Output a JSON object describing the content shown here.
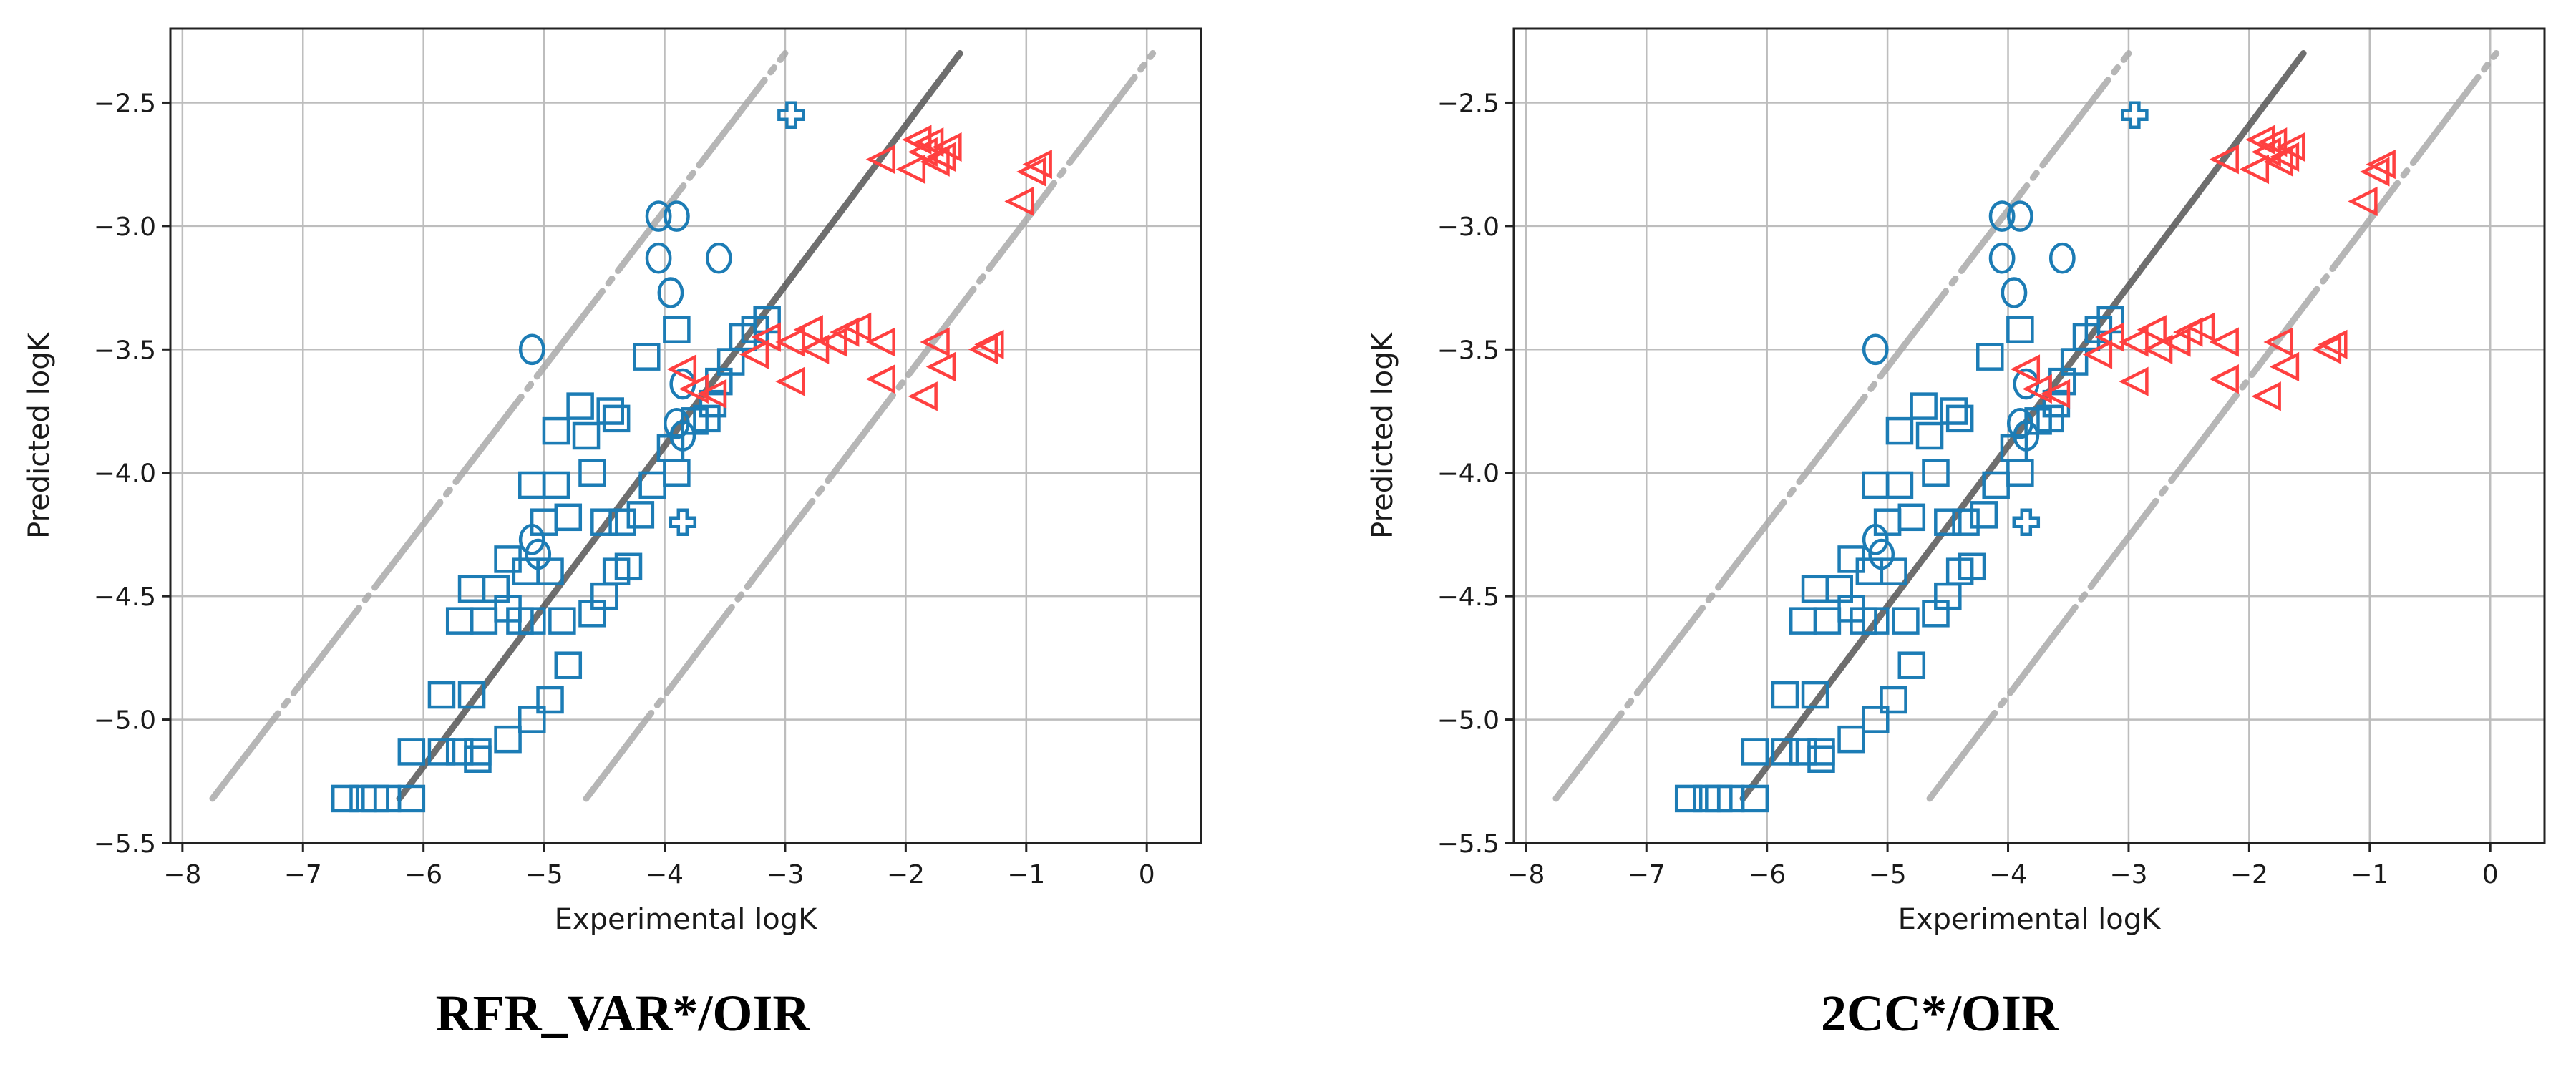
{
  "chart_data": [
    {
      "type": "scatter",
      "caption": "RFR_VAR*/OIR",
      "xlabel": "Experimental logK",
      "ylabel": "Predicted logK",
      "xlim": [
        -8.1,
        0.45
      ],
      "ylim": [
        -5.5,
        -2.2
      ],
      "xticks": [
        -8,
        -7,
        -6,
        -5,
        -4,
        -3,
        -2,
        -1,
        0
      ],
      "yticks": [
        -5.5,
        -5.0,
        -4.5,
        -4.0,
        -3.5,
        -3.0,
        -2.5
      ],
      "xtick_labels": [
        "−8",
        "−7",
        "−6",
        "−5",
        "−4",
        "−3",
        "−2",
        "−1",
        "0"
      ],
      "ytick_labels": [
        "−5.5",
        "−5.0",
        "−4.5",
        "−4.0",
        "−3.5",
        "−3.0",
        "−2.5"
      ],
      "grid": true,
      "reference_lines": [
        {
          "style": "dashed-light",
          "color": "#aaaaaa",
          "points": [
            [
              -7.75,
              -5.32
            ],
            [
              -3.0,
              -2.3
            ]
          ]
        },
        {
          "style": "dashed-light",
          "color": "#aaaaaa",
          "points": [
            [
              -4.65,
              -5.32
            ],
            [
              0.05,
              -2.3
            ]
          ]
        },
        {
          "style": "solid-dark",
          "color": "#555555",
          "points": [
            [
              -6.2,
              -5.32
            ],
            [
              -1.55,
              -2.3
            ]
          ]
        }
      ],
      "series": [
        {
          "marker": "square",
          "color": "#1c7cb5",
          "points": [
            [
              -6.65,
              -5.32
            ],
            [
              -6.5,
              -5.32
            ],
            [
              -6.4,
              -5.32
            ],
            [
              -6.3,
              -5.32
            ],
            [
              -6.1,
              -5.32
            ],
            [
              -6.1,
              -5.13
            ],
            [
              -5.85,
              -5.13
            ],
            [
              -5.7,
              -5.13
            ],
            [
              -5.55,
              -5.13
            ],
            [
              -5.55,
              -5.16
            ],
            [
              -5.3,
              -5.08
            ],
            [
              -5.1,
              -5.0
            ],
            [
              -4.95,
              -4.92
            ],
            [
              -4.8,
              -4.78
            ],
            [
              -5.85,
              -4.9
            ],
            [
              -5.6,
              -4.9
            ],
            [
              -5.7,
              -4.6
            ],
            [
              -5.5,
              -4.6
            ],
            [
              -5.3,
              -4.55
            ],
            [
              -5.2,
              -4.6
            ],
            [
              -5.1,
              -4.6
            ],
            [
              -4.85,
              -4.6
            ],
            [
              -4.6,
              -4.57
            ],
            [
              -5.6,
              -4.47
            ],
            [
              -5.4,
              -4.47
            ],
            [
              -5.3,
              -4.35
            ],
            [
              -5.15,
              -4.4
            ],
            [
              -4.95,
              -4.4
            ],
            [
              -4.5,
              -4.5
            ],
            [
              -4.4,
              -4.4
            ],
            [
              -4.3,
              -4.38
            ],
            [
              -5.0,
              -4.2
            ],
            [
              -4.8,
              -4.18
            ],
            [
              -4.5,
              -4.2
            ],
            [
              -4.35,
              -4.2
            ],
            [
              -4.2,
              -4.17
            ],
            [
              -5.1,
              -4.05
            ],
            [
              -4.9,
              -4.05
            ],
            [
              -4.6,
              -4.0
            ],
            [
              -4.1,
              -4.05
            ],
            [
              -3.9,
              -4.0
            ],
            [
              -3.95,
              -3.9
            ],
            [
              -4.9,
              -3.83
            ],
            [
              -4.65,
              -3.85
            ],
            [
              -4.7,
              -3.73
            ],
            [
              -4.45,
              -3.75
            ],
            [
              -4.4,
              -3.78
            ],
            [
              -3.75,
              -3.79
            ],
            [
              -3.65,
              -3.78
            ],
            [
              -3.6,
              -3.72
            ],
            [
              -3.55,
              -3.63
            ],
            [
              -3.45,
              -3.55
            ],
            [
              -3.35,
              -3.45
            ],
            [
              -3.25,
              -3.42
            ],
            [
              -3.15,
              -3.38
            ],
            [
              -4.15,
              -3.53
            ],
            [
              -3.9,
              -3.42
            ]
          ]
        },
        {
          "marker": "circle",
          "color": "#1c7cb5",
          "points": [
            [
              -4.05,
              -2.96
            ],
            [
              -3.9,
              -2.96
            ],
            [
              -4.05,
              -3.13
            ],
            [
              -3.55,
              -3.13
            ],
            [
              -3.95,
              -3.27
            ],
            [
              -5.1,
              -3.5
            ],
            [
              -3.85,
              -3.64
            ],
            [
              -3.9,
              -3.8
            ],
            [
              -3.85,
              -3.85
            ],
            [
              -5.1,
              -4.27
            ],
            [
              -5.05,
              -4.33
            ]
          ]
        },
        {
          "marker": "plus",
          "color": "#1c7cb5",
          "points": [
            [
              -2.95,
              -2.55
            ],
            [
              -3.85,
              -4.2
            ]
          ]
        },
        {
          "marker": "triangle-left",
          "color": "#ff4040",
          "points": [
            [
              -2.2,
              -2.73
            ],
            [
              -1.9,
              -2.65
            ],
            [
              -1.8,
              -2.66
            ],
            [
              -1.85,
              -2.7
            ],
            [
              -1.7,
              -2.72
            ],
            [
              -1.65,
              -2.68
            ],
            [
              -1.95,
              -2.77
            ],
            [
              -1.75,
              -2.74
            ],
            [
              -0.95,
              -2.78
            ],
            [
              -0.9,
              -2.75
            ],
            [
              -1.05,
              -2.9
            ],
            [
              -3.85,
              -3.58
            ],
            [
              -3.75,
              -3.66
            ],
            [
              -3.6,
              -3.68
            ],
            [
              -3.25,
              -3.52
            ],
            [
              -3.15,
              -3.45
            ],
            [
              -2.95,
              -3.63
            ],
            [
              -2.95,
              -3.47
            ],
            [
              -2.8,
              -3.42
            ],
            [
              -2.75,
              -3.5
            ],
            [
              -2.6,
              -3.47
            ],
            [
              -2.5,
              -3.43
            ],
            [
              -2.4,
              -3.41
            ],
            [
              -2.2,
              -3.47
            ],
            [
              -2.2,
              -3.62
            ],
            [
              -1.85,
              -3.69
            ],
            [
              -1.75,
              -3.47
            ],
            [
              -1.7,
              -3.57
            ],
            [
              -1.35,
              -3.5
            ],
            [
              -1.3,
              -3.48
            ]
          ]
        }
      ]
    },
    {
      "type": "scatter",
      "caption": "2CC*/OIR",
      "xlabel": "Experimental logK",
      "ylabel": "Predicted logK",
      "xlim": [
        -8.1,
        0.45
      ],
      "ylim": [
        -5.5,
        -2.2
      ],
      "xticks": [
        -8,
        -7,
        -6,
        -5,
        -4,
        -3,
        -2,
        -1,
        0
      ],
      "yticks": [
        -5.5,
        -5.0,
        -4.5,
        -4.0,
        -3.5,
        -3.0,
        -2.5
      ],
      "xtick_labels": [
        "−8",
        "−7",
        "−6",
        "−5",
        "−4",
        "−3",
        "−2",
        "−1",
        "0"
      ],
      "ytick_labels": [
        "−5.5",
        "−5.0",
        "−4.5",
        "−4.0",
        "−3.5",
        "−3.0",
        "−2.5"
      ],
      "grid": true,
      "reference_lines": [
        {
          "style": "dashed-light",
          "color": "#aaaaaa",
          "points": [
            [
              -7.75,
              -5.32
            ],
            [
              -3.0,
              -2.3
            ]
          ]
        },
        {
          "style": "dashed-light",
          "color": "#aaaaaa",
          "points": [
            [
              -4.65,
              -5.32
            ],
            [
              0.05,
              -2.3
            ]
          ]
        },
        {
          "style": "solid-dark",
          "color": "#555555",
          "points": [
            [
              -6.2,
              -5.32
            ],
            [
              -1.55,
              -2.3
            ]
          ]
        }
      ],
      "series": [
        {
          "marker": "square",
          "color": "#1c7cb5",
          "points": [
            [
              -6.65,
              -5.32
            ],
            [
              -6.5,
              -5.32
            ],
            [
              -6.4,
              -5.32
            ],
            [
              -6.3,
              -5.32
            ],
            [
              -6.1,
              -5.32
            ],
            [
              -6.1,
              -5.13
            ],
            [
              -5.85,
              -5.13
            ],
            [
              -5.7,
              -5.13
            ],
            [
              -5.55,
              -5.13
            ],
            [
              -5.55,
              -5.16
            ],
            [
              -5.3,
              -5.08
            ],
            [
              -5.1,
              -5.0
            ],
            [
              -4.95,
              -4.92
            ],
            [
              -4.8,
              -4.78
            ],
            [
              -5.85,
              -4.9
            ],
            [
              -5.6,
              -4.9
            ],
            [
              -5.7,
              -4.6
            ],
            [
              -5.5,
              -4.6
            ],
            [
              -5.3,
              -4.55
            ],
            [
              -5.2,
              -4.6
            ],
            [
              -5.1,
              -4.6
            ],
            [
              -4.85,
              -4.6
            ],
            [
              -4.6,
              -4.57
            ],
            [
              -5.6,
              -4.47
            ],
            [
              -5.4,
              -4.47
            ],
            [
              -5.3,
              -4.35
            ],
            [
              -5.15,
              -4.4
            ],
            [
              -4.95,
              -4.4
            ],
            [
              -4.5,
              -4.5
            ],
            [
              -4.4,
              -4.4
            ],
            [
              -4.3,
              -4.38
            ],
            [
              -5.0,
              -4.2
            ],
            [
              -4.8,
              -4.18
            ],
            [
              -4.5,
              -4.2
            ],
            [
              -4.35,
              -4.2
            ],
            [
              -4.2,
              -4.17
            ],
            [
              -5.1,
              -4.05
            ],
            [
              -4.9,
              -4.05
            ],
            [
              -4.6,
              -4.0
            ],
            [
              -4.1,
              -4.05
            ],
            [
              -3.9,
              -4.0
            ],
            [
              -3.95,
              -3.9
            ],
            [
              -4.9,
              -3.83
            ],
            [
              -4.65,
              -3.85
            ],
            [
              -4.7,
              -3.73
            ],
            [
              -4.45,
              -3.75
            ],
            [
              -4.4,
              -3.78
            ],
            [
              -3.75,
              -3.79
            ],
            [
              -3.65,
              -3.78
            ],
            [
              -3.6,
              -3.72
            ],
            [
              -3.55,
              -3.63
            ],
            [
              -3.45,
              -3.55
            ],
            [
              -3.35,
              -3.45
            ],
            [
              -3.25,
              -3.42
            ],
            [
              -3.15,
              -3.38
            ],
            [
              -4.15,
              -3.53
            ],
            [
              -3.9,
              -3.42
            ]
          ]
        },
        {
          "marker": "circle",
          "color": "#1c7cb5",
          "points": [
            [
              -4.05,
              -2.96
            ],
            [
              -3.9,
              -2.96
            ],
            [
              -4.05,
              -3.13
            ],
            [
              -3.55,
              -3.13
            ],
            [
              -3.95,
              -3.27
            ],
            [
              -5.1,
              -3.5
            ],
            [
              -3.85,
              -3.64
            ],
            [
              -3.9,
              -3.8
            ],
            [
              -3.85,
              -3.85
            ],
            [
              -5.1,
              -4.27
            ],
            [
              -5.05,
              -4.33
            ]
          ]
        },
        {
          "marker": "plus",
          "color": "#1c7cb5",
          "points": [
            [
              -2.95,
              -2.55
            ],
            [
              -3.85,
              -4.2
            ]
          ]
        },
        {
          "marker": "triangle-left",
          "color": "#ff4040",
          "points": [
            [
              -2.2,
              -2.73
            ],
            [
              -1.9,
              -2.65
            ],
            [
              -1.8,
              -2.66
            ],
            [
              -1.85,
              -2.7
            ],
            [
              -1.7,
              -2.72
            ],
            [
              -1.65,
              -2.68
            ],
            [
              -1.95,
              -2.77
            ],
            [
              -1.75,
              -2.74
            ],
            [
              -0.95,
              -2.78
            ],
            [
              -0.9,
              -2.75
            ],
            [
              -1.05,
              -2.9
            ],
            [
              -3.85,
              -3.58
            ],
            [
              -3.75,
              -3.66
            ],
            [
              -3.6,
              -3.68
            ],
            [
              -3.25,
              -3.52
            ],
            [
              -3.15,
              -3.45
            ],
            [
              -2.95,
              -3.63
            ],
            [
              -2.95,
              -3.47
            ],
            [
              -2.8,
              -3.42
            ],
            [
              -2.75,
              -3.5
            ],
            [
              -2.6,
              -3.47
            ],
            [
              -2.5,
              -3.43
            ],
            [
              -2.4,
              -3.41
            ],
            [
              -2.2,
              -3.47
            ],
            [
              -2.2,
              -3.62
            ],
            [
              -1.85,
              -3.69
            ],
            [
              -1.75,
              -3.47
            ],
            [
              -1.7,
              -3.57
            ],
            [
              -1.35,
              -3.5
            ],
            [
              -1.3,
              -3.48
            ]
          ]
        }
      ]
    }
  ]
}
